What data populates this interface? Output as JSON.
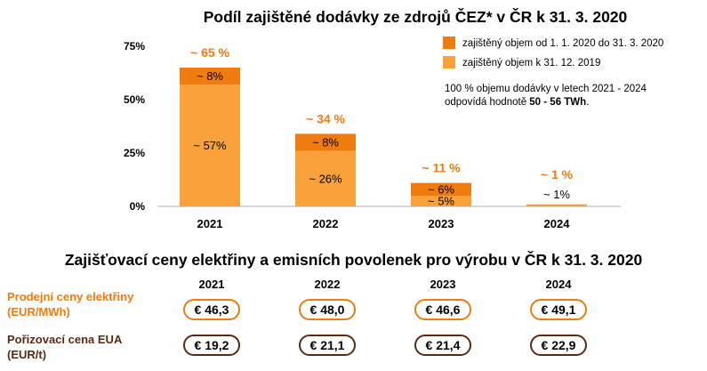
{
  "chart_data": {
    "type": "bar",
    "stacked": true,
    "title": "Podíl zajištěné dodávky ze zdrojů ČEZ* v ČR k 31. 3. 2020",
    "categories": [
      "2021",
      "2022",
      "2023",
      "2024"
    ],
    "ylim": [
      0,
      75
    ],
    "yticks": [
      "0%",
      "25%",
      "50%",
      "75%"
    ],
    "series": [
      {
        "name": "zajištěný objem k 31. 12. 2019",
        "color": "#f9a13a",
        "values": [
          57,
          26,
          5,
          1
        ],
        "labels": [
          "~ 57%",
          "~ 26%",
          "~ 5%",
          "~ 1%"
        ]
      },
      {
        "name": "zajištěný objem od 1. 1. 2020 do 31. 3. 2020",
        "color": "#f07b0f",
        "values": [
          8,
          8,
          6,
          0
        ],
        "labels": [
          "~ 8%",
          "~ 8%",
          "~ 6%",
          ""
        ]
      }
    ],
    "totals": [
      "~ 65 %",
      "~ 34 %",
      "~ 11 %",
      "~ 1 %"
    ],
    "note_line1": "100 % objemu dodávky v letech 2021 - 2024",
    "note_line2_pre": "odpovídá hodnotě ",
    "note_line2_bold": "50 - 56 TWh",
    "note_line2_post": ".",
    "legend_position": "top-right",
    "grid": false
  },
  "table": {
    "title": "Zajišťovací ceny elektřiny a emisních povolenek pro výrobu v ČR k 31. 3. 2020",
    "years": [
      "2021",
      "2022",
      "2023",
      "2024"
    ],
    "rows": [
      {
        "label_line1": "Prodejní ceny elektřiny",
        "label_line2": "(EUR/MWh)",
        "color": "#f07b0f",
        "values": [
          "€ 46,3",
          "€ 48,0",
          "€ 46,6",
          "€ 49,1"
        ]
      },
      {
        "label_line1": "Pořizovací cena EUA",
        "label_line2": "(EUR/t)",
        "color": "#5a2a12",
        "values": [
          "€ 19,2",
          "€ 21,1",
          "€ 21,4",
          "€ 22,9"
        ]
      }
    ]
  }
}
